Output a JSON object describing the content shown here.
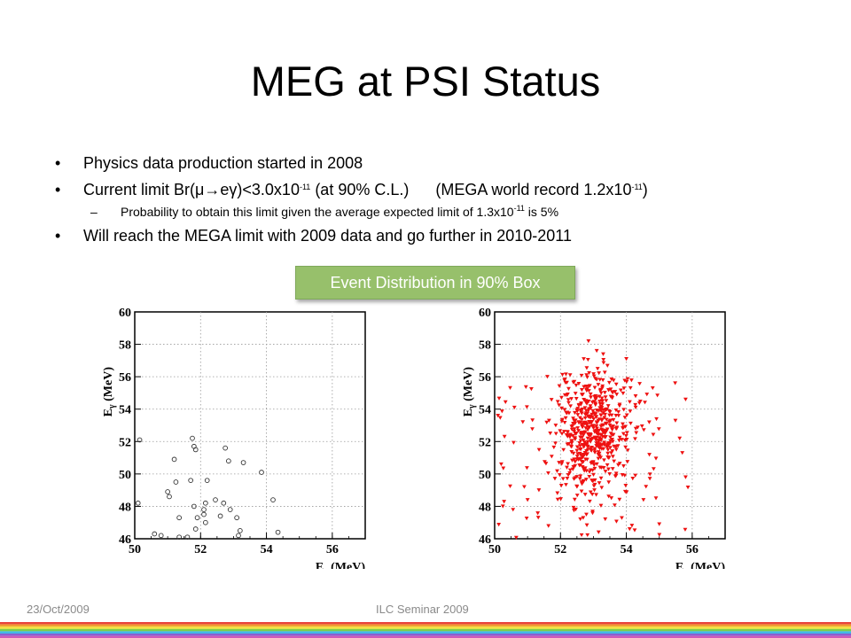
{
  "slide": {
    "title": "MEG at PSI Status",
    "bullet_glyph": "•",
    "dash_glyph": "–",
    "bullets": [
      {
        "text": "Physics data production started in 2008"
      },
      {
        "pre": "Current limit Br(",
        "mu": "μ",
        "arrow": "→",
        "e": "e",
        "gamma": "γ",
        "mid": ")<3.0x10",
        "exp": "-11",
        "post": " (at 90% C.L.)      (MEGA world record 1.2x10",
        "exp2": "-11",
        "end": ")"
      },
      {
        "text": "Will reach the MEGA limit with 2009 data and go further in 2010-2011"
      }
    ],
    "sub_bullet": {
      "pre": "Probability to obtain this limit given the average expected limit of 1.3x10",
      "exp": "-11",
      "post": " is 5%"
    },
    "badge": "Event Distribution in 90% Box",
    "footer_left": "23/Oct/2009",
    "footer_center": "ILC Seminar 2009",
    "bar_colors": [
      "#e8443a",
      "#f0a030",
      "#f3e23a",
      "#7ccf4a",
      "#42b8e8",
      "#8a5fd0",
      "#d05ab8"
    ]
  },
  "chart_data": [
    {
      "type": "scatter",
      "xlabel": "E",
      "xlabel_sub": "e",
      "xlabel_unit": " (MeV)",
      "ylabel": "E",
      "ylabel_sub": "γ",
      "ylabel_unit": " (MeV)",
      "xlim": [
        50,
        57
      ],
      "ylim": [
        46,
        60
      ],
      "xticks": [
        50,
        52,
        54,
        56
      ],
      "yticks": [
        46,
        48,
        50,
        52,
        54,
        56,
        58,
        60
      ],
      "grid": true,
      "marker": "open-circle",
      "color": "#333333",
      "points": [
        [
          50.15,
          52.1
        ],
        [
          50.1,
          48.2
        ],
        [
          50.6,
          46.3
        ],
        [
          50.8,
          46.2
        ],
        [
          51.0,
          48.9
        ],
        [
          51.05,
          48.6
        ],
        [
          51.2,
          50.9
        ],
        [
          51.25,
          49.5
        ],
        [
          51.35,
          47.3
        ],
        [
          51.35,
          46.1
        ],
        [
          51.6,
          46.1
        ],
        [
          51.7,
          49.6
        ],
        [
          51.75,
          52.2
        ],
        [
          51.8,
          51.7
        ],
        [
          51.85,
          51.5
        ],
        [
          51.8,
          48.0
        ],
        [
          51.9,
          47.3
        ],
        [
          51.85,
          46.6
        ],
        [
          52.1,
          47.8
        ],
        [
          52.1,
          47.5
        ],
        [
          52.15,
          48.2
        ],
        [
          52.2,
          49.6
        ],
        [
          52.15,
          47.0
        ],
        [
          52.45,
          48.4
        ],
        [
          52.6,
          47.4
        ],
        [
          52.7,
          48.2
        ],
        [
          52.75,
          51.6
        ],
        [
          52.85,
          50.8
        ],
        [
          52.9,
          47.8
        ],
        [
          53.1,
          47.3
        ],
        [
          53.15,
          46.2
        ],
        [
          53.2,
          46.5
        ],
        [
          53.3,
          50.7
        ],
        [
          53.85,
          50.1
        ],
        [
          54.2,
          48.4
        ],
        [
          54.35,
          46.4
        ]
      ]
    },
    {
      "type": "scatter",
      "xlabel": "E",
      "xlabel_sub": "e",
      "xlabel_unit": " (MeV)",
      "ylabel": "E",
      "ylabel_sub": "γ",
      "ylabel_unit": " (MeV)",
      "xlim": [
        50,
        57
      ],
      "ylim": [
        46,
        60
      ],
      "xticks": [
        50,
        52,
        54,
        56
      ],
      "yticks": [
        46,
        48,
        50,
        52,
        54,
        56,
        58,
        60
      ],
      "grid": true,
      "marker": "filled-triangle",
      "color": "#ee1111",
      "distribution": {
        "x_mean": 53.0,
        "x_sd": 0.55,
        "y_mean": 52.6,
        "y_sd": 1.9,
        "core_points": 560,
        "spread_points": 90,
        "seed": 7
      },
      "points": [
        [
          52.85,
          58.2
        ],
        [
          54.0,
          57.1
        ],
        [
          53.1,
          57.6
        ],
        [
          55.8,
          54.6
        ],
        [
          55.7,
          51.3
        ],
        [
          55.8,
          49.8
        ],
        [
          50.1,
          53.6
        ],
        [
          50.25,
          48.0
        ],
        [
          50.3,
          52.3
        ],
        [
          50.9,
          49.2
        ],
        [
          51.0,
          48.4
        ],
        [
          50.2,
          50.6
        ],
        [
          54.9,
          48.5
        ],
        [
          55.0,
          46.9
        ],
        [
          54.1,
          46.6
        ],
        [
          51.6,
          56.0
        ],
        [
          50.6,
          54.1
        ],
        [
          54.8,
          55.3
        ]
      ]
    }
  ]
}
